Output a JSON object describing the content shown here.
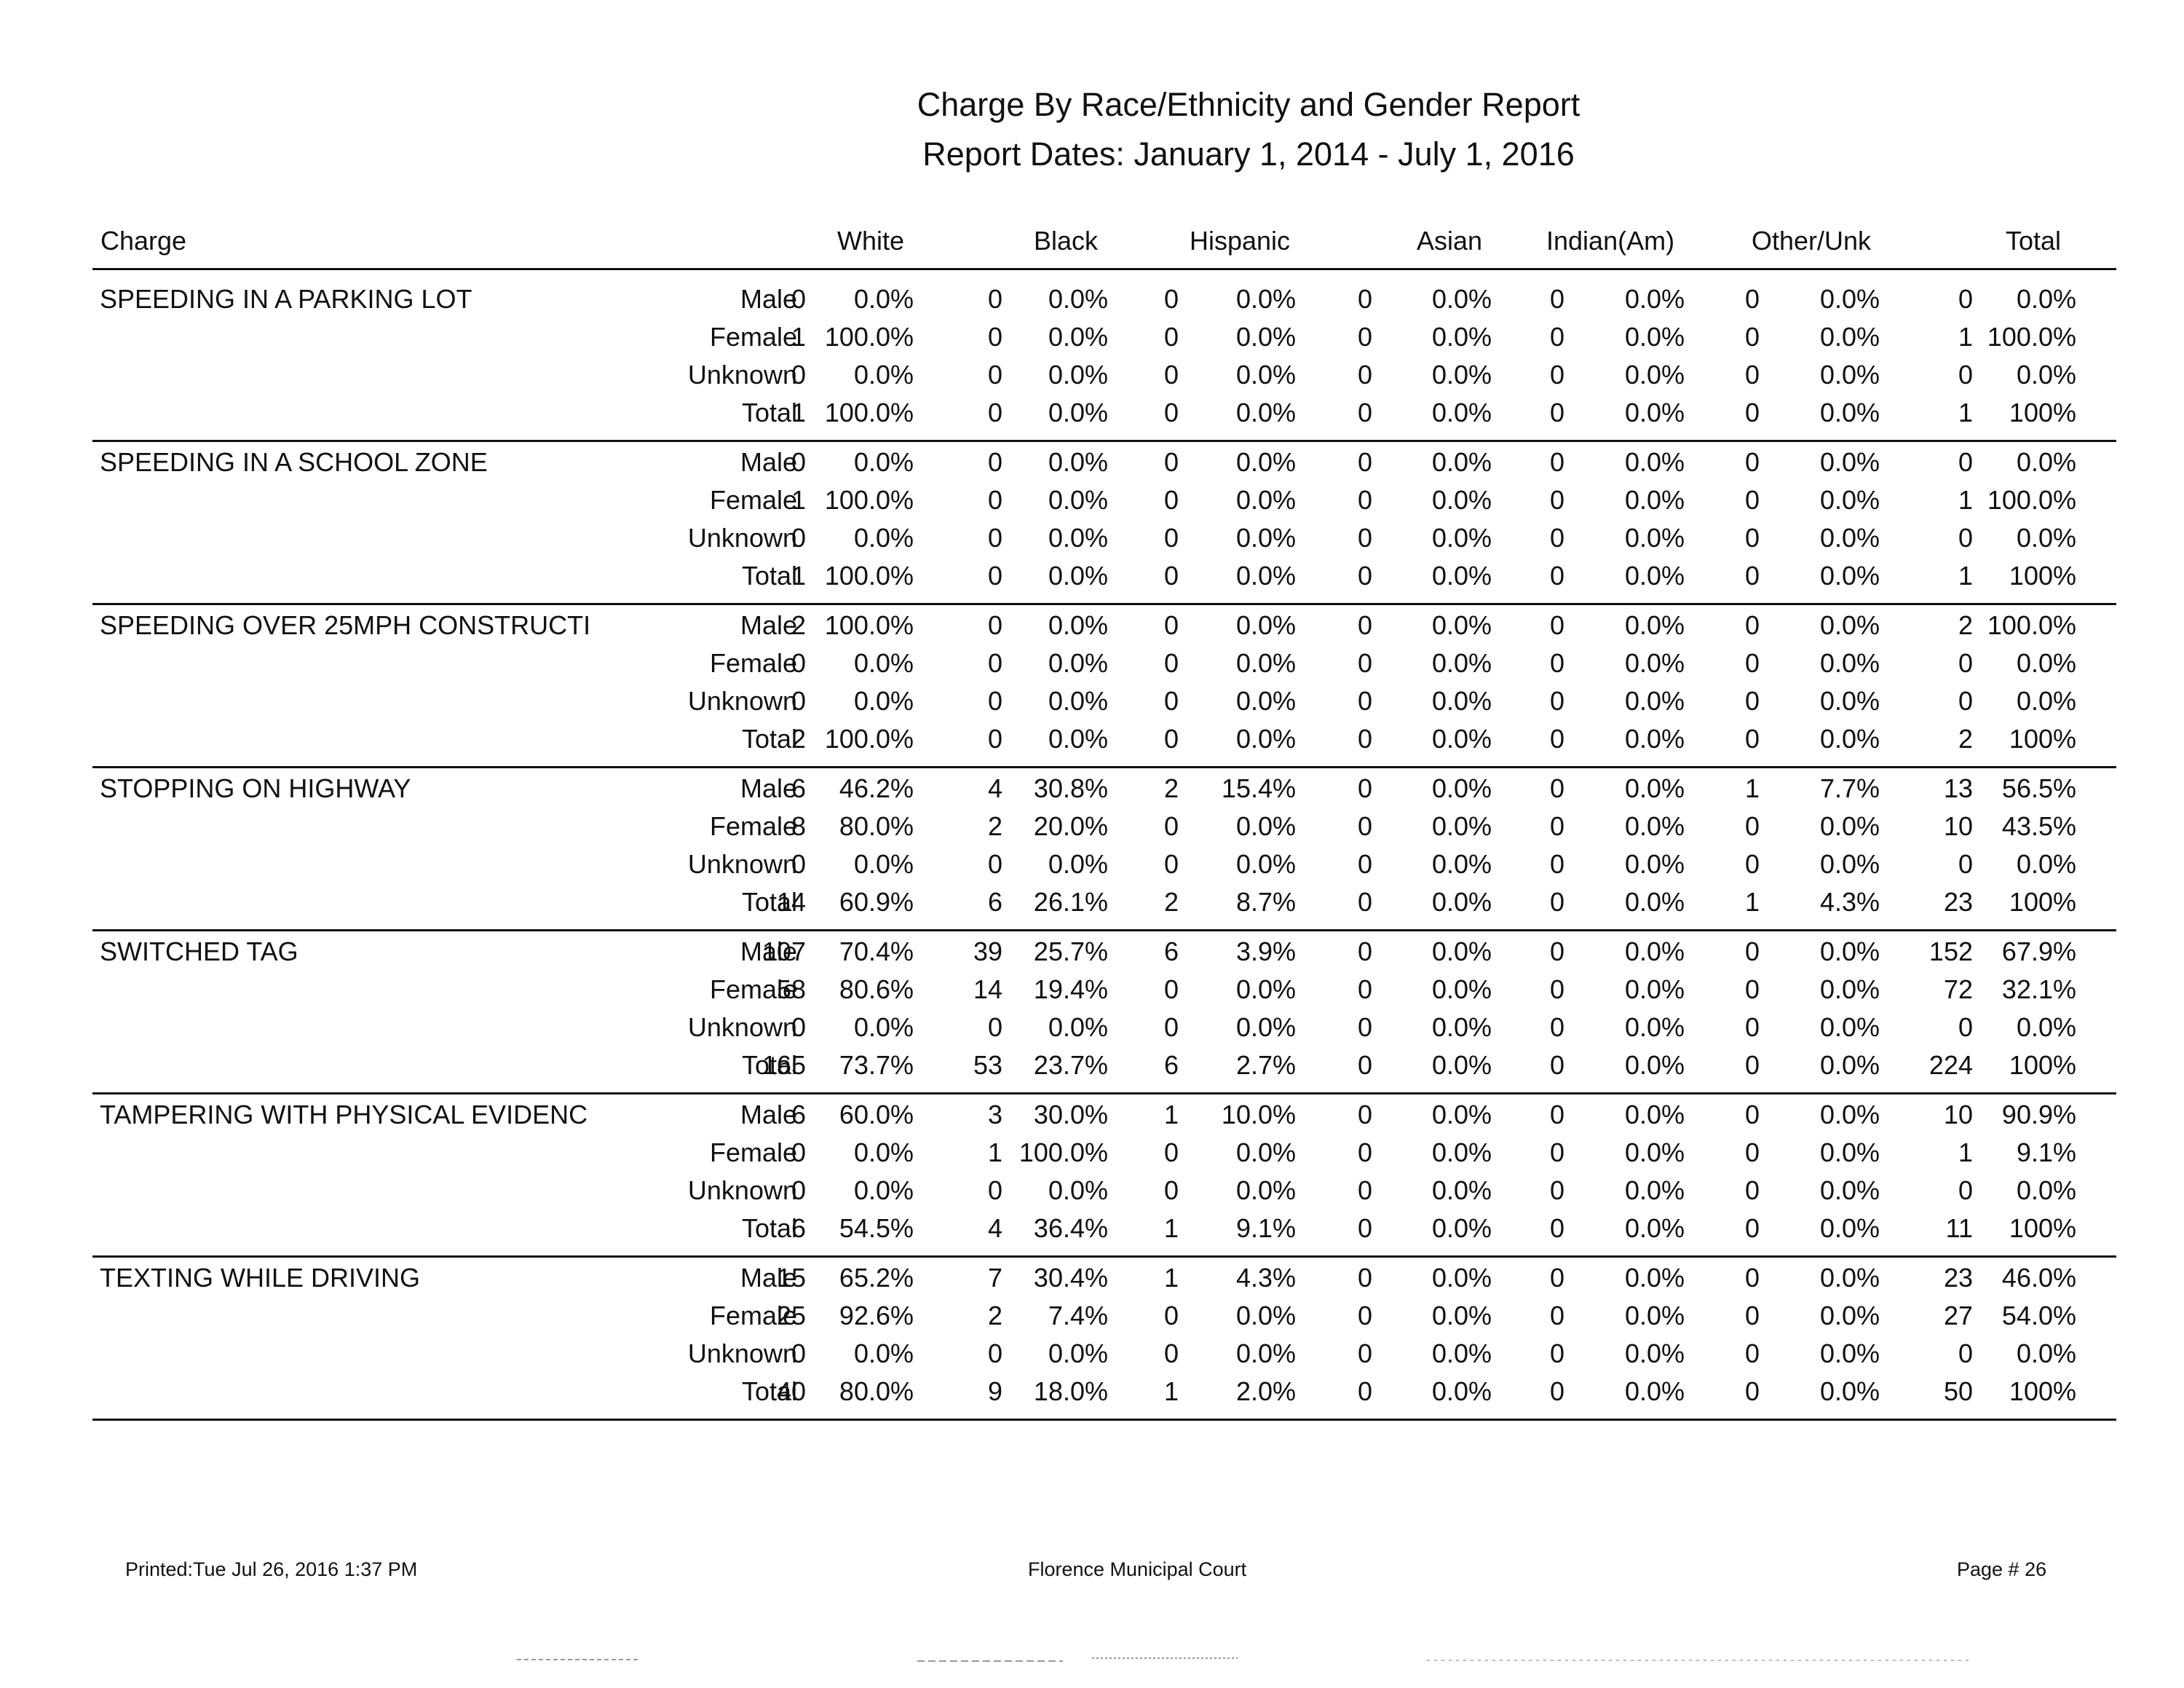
{
  "report": {
    "title": "Charge By Race/Ethnicity and Gender Report",
    "dates": "Report Dates: January 1, 2014  -  July 1, 2016"
  },
  "headers": {
    "charge": "Charge",
    "white": "White",
    "black": "Black",
    "hispanic": "Hispanic",
    "asian": "Asian",
    "indian": "Indian(Am)",
    "other": "Other/Unk",
    "total": "Total"
  },
  "groups": [
    {
      "charge": "SPEEDING IN A PARKING LOT",
      "rows": [
        {
          "gender": "Male",
          "cells": [
            "0",
            "0.0%",
            "0",
            "0.0%",
            "0",
            "0.0%",
            "0",
            "0.0%",
            "0",
            "0.0%",
            "0",
            "0.0%",
            "0",
            "0.0%"
          ]
        },
        {
          "gender": "Female",
          "cells": [
            "1",
            "100.0%",
            "0",
            "0.0%",
            "0",
            "0.0%",
            "0",
            "0.0%",
            "0",
            "0.0%",
            "0",
            "0.0%",
            "1",
            "100.0%"
          ]
        },
        {
          "gender": "Unknown",
          "cells": [
            "0",
            "0.0%",
            "0",
            "0.0%",
            "0",
            "0.0%",
            "0",
            "0.0%",
            "0",
            "0.0%",
            "0",
            "0.0%",
            "0",
            "0.0%"
          ]
        },
        {
          "gender": "Total",
          "cells": [
            "1",
            "100.0%",
            "0",
            "0.0%",
            "0",
            "0.0%",
            "0",
            "0.0%",
            "0",
            "0.0%",
            "0",
            "0.0%",
            "1",
            "100%"
          ]
        }
      ]
    },
    {
      "charge": "SPEEDING IN A SCHOOL ZONE",
      "rows": [
        {
          "gender": "Male",
          "cells": [
            "0",
            "0.0%",
            "0",
            "0.0%",
            "0",
            "0.0%",
            "0",
            "0.0%",
            "0",
            "0.0%",
            "0",
            "0.0%",
            "0",
            "0.0%"
          ]
        },
        {
          "gender": "Female",
          "cells": [
            "1",
            "100.0%",
            "0",
            "0.0%",
            "0",
            "0.0%",
            "0",
            "0.0%",
            "0",
            "0.0%",
            "0",
            "0.0%",
            "1",
            "100.0%"
          ]
        },
        {
          "gender": "Unknown",
          "cells": [
            "0",
            "0.0%",
            "0",
            "0.0%",
            "0",
            "0.0%",
            "0",
            "0.0%",
            "0",
            "0.0%",
            "0",
            "0.0%",
            "0",
            "0.0%"
          ]
        },
        {
          "gender": "Total",
          "cells": [
            "1",
            "100.0%",
            "0",
            "0.0%",
            "0",
            "0.0%",
            "0",
            "0.0%",
            "0",
            "0.0%",
            "0",
            "0.0%",
            "1",
            "100%"
          ]
        }
      ]
    },
    {
      "charge": "SPEEDING OVER 25MPH CONSTRUCTI",
      "rows": [
        {
          "gender": "Male",
          "cells": [
            "2",
            "100.0%",
            "0",
            "0.0%",
            "0",
            "0.0%",
            "0",
            "0.0%",
            "0",
            "0.0%",
            "0",
            "0.0%",
            "2",
            "100.0%"
          ]
        },
        {
          "gender": "Female",
          "cells": [
            "0",
            "0.0%",
            "0",
            "0.0%",
            "0",
            "0.0%",
            "0",
            "0.0%",
            "0",
            "0.0%",
            "0",
            "0.0%",
            "0",
            "0.0%"
          ]
        },
        {
          "gender": "Unknown",
          "cells": [
            "0",
            "0.0%",
            "0",
            "0.0%",
            "0",
            "0.0%",
            "0",
            "0.0%",
            "0",
            "0.0%",
            "0",
            "0.0%",
            "0",
            "0.0%"
          ]
        },
        {
          "gender": "Total",
          "cells": [
            "2",
            "100.0%",
            "0",
            "0.0%",
            "0",
            "0.0%",
            "0",
            "0.0%",
            "0",
            "0.0%",
            "0",
            "0.0%",
            "2",
            "100%"
          ]
        }
      ]
    },
    {
      "charge": "STOPPING ON HIGHWAY",
      "rows": [
        {
          "gender": "Male",
          "cells": [
            "6",
            "46.2%",
            "4",
            "30.8%",
            "2",
            "15.4%",
            "0",
            "0.0%",
            "0",
            "0.0%",
            "1",
            "7.7%",
            "13",
            "56.5%"
          ]
        },
        {
          "gender": "Female",
          "cells": [
            "8",
            "80.0%",
            "2",
            "20.0%",
            "0",
            "0.0%",
            "0",
            "0.0%",
            "0",
            "0.0%",
            "0",
            "0.0%",
            "10",
            "43.5%"
          ]
        },
        {
          "gender": "Unknown",
          "cells": [
            "0",
            "0.0%",
            "0",
            "0.0%",
            "0",
            "0.0%",
            "0",
            "0.0%",
            "0",
            "0.0%",
            "0",
            "0.0%",
            "0",
            "0.0%"
          ]
        },
        {
          "gender": "Total",
          "cells": [
            "14",
            "60.9%",
            "6",
            "26.1%",
            "2",
            "8.7%",
            "0",
            "0.0%",
            "0",
            "0.0%",
            "1",
            "4.3%",
            "23",
            "100%"
          ]
        }
      ]
    },
    {
      "charge": "SWITCHED TAG",
      "rows": [
        {
          "gender": "Male",
          "cells": [
            "107",
            "70.4%",
            "39",
            "25.7%",
            "6",
            "3.9%",
            "0",
            "0.0%",
            "0",
            "0.0%",
            "0",
            "0.0%",
            "152",
            "67.9%"
          ]
        },
        {
          "gender": "Female",
          "cells": [
            "58",
            "80.6%",
            "14",
            "19.4%",
            "0",
            "0.0%",
            "0",
            "0.0%",
            "0",
            "0.0%",
            "0",
            "0.0%",
            "72",
            "32.1%"
          ]
        },
        {
          "gender": "Unknown",
          "cells": [
            "0",
            "0.0%",
            "0",
            "0.0%",
            "0",
            "0.0%",
            "0",
            "0.0%",
            "0",
            "0.0%",
            "0",
            "0.0%",
            "0",
            "0.0%"
          ]
        },
        {
          "gender": "Total",
          "cells": [
            "165",
            "73.7%",
            "53",
            "23.7%",
            "6",
            "2.7%",
            "0",
            "0.0%",
            "0",
            "0.0%",
            "0",
            "0.0%",
            "224",
            "100%"
          ]
        }
      ]
    },
    {
      "charge": "TAMPERING WITH PHYSICAL EVIDENC",
      "rows": [
        {
          "gender": "Male",
          "cells": [
            "6",
            "60.0%",
            "3",
            "30.0%",
            "1",
            "10.0%",
            "0",
            "0.0%",
            "0",
            "0.0%",
            "0",
            "0.0%",
            "10",
            "90.9%"
          ]
        },
        {
          "gender": "Female",
          "cells": [
            "0",
            "0.0%",
            "1",
            "100.0%",
            "0",
            "0.0%",
            "0",
            "0.0%",
            "0",
            "0.0%",
            "0",
            "0.0%",
            "1",
            "9.1%"
          ]
        },
        {
          "gender": "Unknown",
          "cells": [
            "0",
            "0.0%",
            "0",
            "0.0%",
            "0",
            "0.0%",
            "0",
            "0.0%",
            "0",
            "0.0%",
            "0",
            "0.0%",
            "0",
            "0.0%"
          ]
        },
        {
          "gender": "Total",
          "cells": [
            "6",
            "54.5%",
            "4",
            "36.4%",
            "1",
            "9.1%",
            "0",
            "0.0%",
            "0",
            "0.0%",
            "0",
            "0.0%",
            "11",
            "100%"
          ]
        }
      ]
    },
    {
      "charge": "TEXTING WHILE DRIVING",
      "rows": [
        {
          "gender": "Male",
          "cells": [
            "15",
            "65.2%",
            "7",
            "30.4%",
            "1",
            "4.3%",
            "0",
            "0.0%",
            "0",
            "0.0%",
            "0",
            "0.0%",
            "23",
            "46.0%"
          ]
        },
        {
          "gender": "Female",
          "cells": [
            "25",
            "92.6%",
            "2",
            "7.4%",
            "0",
            "0.0%",
            "0",
            "0.0%",
            "0",
            "0.0%",
            "0",
            "0.0%",
            "27",
            "54.0%"
          ]
        },
        {
          "gender": "Unknown",
          "cells": [
            "0",
            "0.0%",
            "0",
            "0.0%",
            "0",
            "0.0%",
            "0",
            "0.0%",
            "0",
            "0.0%",
            "0",
            "0.0%",
            "0",
            "0.0%"
          ]
        },
        {
          "gender": "Total",
          "cells": [
            "40",
            "80.0%",
            "9",
            "18.0%",
            "1",
            "2.0%",
            "0",
            "0.0%",
            "0",
            "0.0%",
            "0",
            "0.0%",
            "50",
            "100%"
          ]
        }
      ]
    }
  ],
  "footer": {
    "printed": "Printed:Tue Jul 26, 2016 1:37 PM",
    "court": "Florence Municipal Court",
    "page": "Page # 26"
  }
}
